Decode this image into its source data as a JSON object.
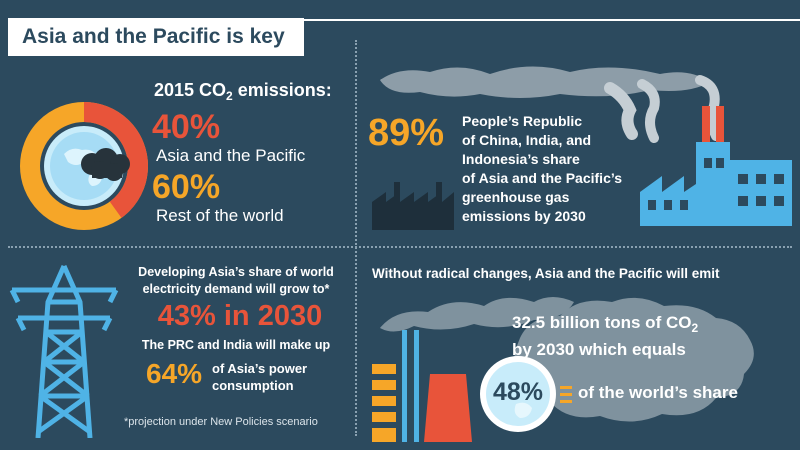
{
  "title": "Asia and the Pacific is key",
  "colors": {
    "background": "#2c4a5e",
    "red": "#e8543a",
    "orange": "#f6a628",
    "blue": "#4fb3e6",
    "cloud": "#7a8d99",
    "white": "#ffffff"
  },
  "emissions_2015": {
    "heading_pre": "2015 CO",
    "heading_sub": "2",
    "heading_post": " emissions:",
    "asia_percent": "40%",
    "asia_label": "Asia and the Pacific",
    "rest_percent": "60%",
    "rest_label": "Rest of the world",
    "donut": {
      "asia_share": 40,
      "rest_share": 60
    }
  },
  "china_share": {
    "percent": "89%",
    "line1": "People’s Republic",
    "line2": "of China, India, and",
    "line3": "Indonesia’s share",
    "line4": "of Asia and the Pacific’s",
    "line5": "greenhouse gas",
    "line6": "emissions by 2030"
  },
  "electricity": {
    "line1": "Developing Asia’s share of world",
    "line2": "electricity demand will grow to*",
    "big": "43% in 2030",
    "sub": "The PRC and India will make up",
    "percent": "64%",
    "tail1": "of Asia’s power",
    "tail2": "consumption",
    "footnote": "*projection under New Policies scenario"
  },
  "future": {
    "headline": "Without radical changes, Asia and the Pacific will emit",
    "amount_pre": "32.5 billion tons of CO",
    "amount_sub": "2",
    "amount_line2": "by 2030 which equals",
    "percent": "48%",
    "share_label": "of the world’s share"
  },
  "icons": [
    "donut-globe-icon",
    "factory-icon",
    "power-tower-icon",
    "smokestack-icon",
    "globe-icon",
    "cloud-icon"
  ]
}
